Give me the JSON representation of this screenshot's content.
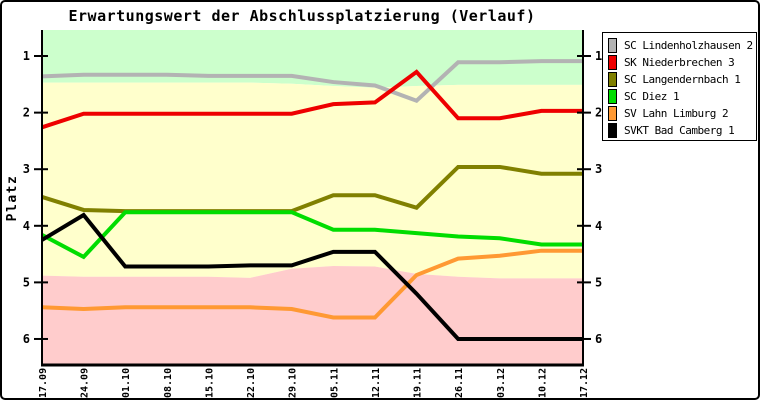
{
  "chart_data": {
    "type": "line",
    "title": "Erwartungswert der Abschlussplatzierung (Verlauf)",
    "xlabel": "",
    "ylabel": "Platz",
    "y_axis_inverted": true,
    "ylim": [
      0.54,
      6.46
    ],
    "y_ticks": [
      1,
      2,
      3,
      4,
      5,
      6
    ],
    "grid": false,
    "legend_position": "outside-top-right",
    "x_labels": [
      "17.09",
      "24.09",
      "01.10",
      "08.10",
      "15.10",
      "22.10",
      "29.10",
      "05.11",
      "12.11",
      "19.11",
      "26.11",
      "03.12",
      "10.12",
      "17.12"
    ],
    "series": [
      {
        "name": "SC Lindenholzhausen 2",
        "color": "#b3b3b3",
        "values": [
          1.36,
          1.33,
          1.33,
          1.33,
          1.35,
          1.35,
          1.35,
          1.46,
          1.52,
          1.79,
          1.11,
          1.11,
          1.09,
          1.09
        ]
      },
      {
        "name": "SK Niederbrechen 3",
        "color": "#ee0000",
        "values": [
          2.26,
          2.02,
          2.02,
          2.02,
          2.02,
          2.02,
          2.02,
          1.85,
          1.82,
          1.28,
          2.1,
          2.1,
          1.97,
          1.97
        ]
      },
      {
        "name": "SC Langendernbach 1",
        "color": "#808000",
        "values": [
          3.49,
          3.72,
          3.74,
          3.74,
          3.74,
          3.74,
          3.74,
          3.46,
          3.46,
          3.68,
          2.96,
          2.96,
          3.08,
          3.08
        ]
      },
      {
        "name": "SC Diez 1",
        "color": "#00dd00",
        "values": [
          4.16,
          4.55,
          3.76,
          3.76,
          3.76,
          3.76,
          3.76,
          4.07,
          4.07,
          4.13,
          4.19,
          4.22,
          4.33,
          4.33
        ]
      },
      {
        "name": "SV Lahn Limburg 2",
        "color": "#ff9933",
        "values": [
          5.44,
          5.47,
          5.44,
          5.44,
          5.44,
          5.44,
          5.47,
          5.62,
          5.62,
          4.87,
          4.58,
          4.53,
          4.44,
          4.44
        ]
      },
      {
        "name": "SVKT Bad Camberg 1",
        "color": "#000000",
        "values": [
          4.25,
          3.81,
          4.72,
          4.72,
          4.72,
          4.7,
          4.7,
          4.46,
          4.46,
          5.2,
          6.0,
          6.0,
          6.0,
          6.0
        ]
      }
    ],
    "bands": {
      "promotion": {
        "color": "#ccffcc",
        "from": "top",
        "to": [
          1.47,
          1.47,
          1.47,
          1.47,
          1.47,
          1.47,
          1.49,
          1.53,
          1.56,
          1.53,
          1.51,
          1.51,
          1.51,
          1.51
        ]
      },
      "midfield": {
        "color": "#ffffcc"
      },
      "relegation": {
        "color": "#ffcccc",
        "to": "bottom",
        "from": [
          4.88,
          4.9,
          4.9,
          4.9,
          4.9,
          4.92,
          4.76,
          4.71,
          4.72,
          4.85,
          4.9,
          4.93,
          4.93,
          4.93
        ]
      }
    }
  }
}
